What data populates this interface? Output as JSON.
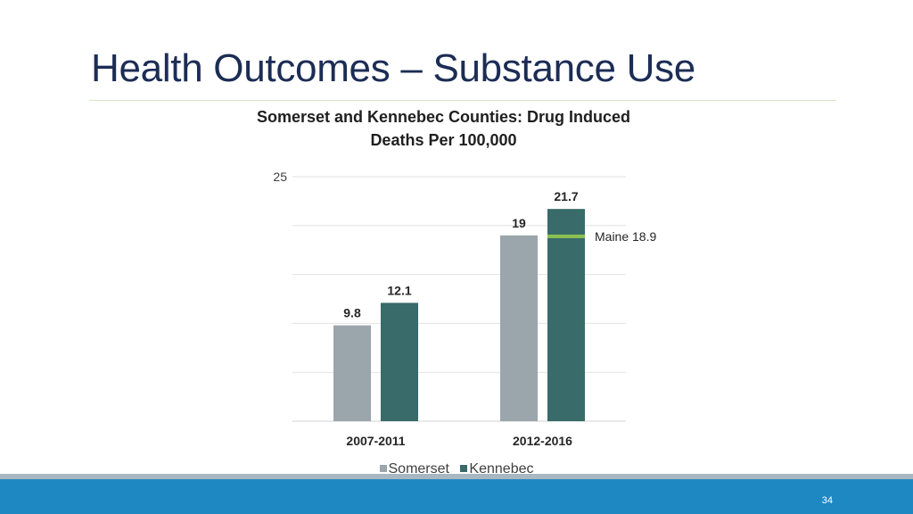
{
  "slide": {
    "title": "Health Outcomes – Substance Use",
    "page_number": "34"
  },
  "chart_data": {
    "type": "bar",
    "title_lines": [
      "Somerset and Kennebec Counties: Drug Induced",
      "Deaths Per 100,000"
    ],
    "categories": [
      "2007-2011",
      "2012-2016"
    ],
    "series": [
      {
        "name": "Somerset",
        "values": [
          9.8,
          19
        ],
        "labels": [
          "9.8",
          "19"
        ],
        "color": "#9aa6ab"
      },
      {
        "name": "Kennebec",
        "values": [
          12.1,
          21.7
        ],
        "labels": [
          "12.1",
          "21.7"
        ],
        "color": "#386b6a"
      }
    ],
    "ylim": [
      0,
      25
    ],
    "y_tick_labels": [
      "25"
    ],
    "gridlines": [
      0,
      5,
      10,
      15,
      20,
      25
    ],
    "grid": true,
    "legend_position": "bottom",
    "reference": {
      "label": "Maine 18.9",
      "value": 18.9,
      "category": "2012-2016",
      "series": "Kennebec",
      "color": "#8cc152"
    }
  },
  "colors": {
    "title": "#1c2d55",
    "footer": "#1e88c3",
    "footer_stripe": "#a9b7c2"
  }
}
